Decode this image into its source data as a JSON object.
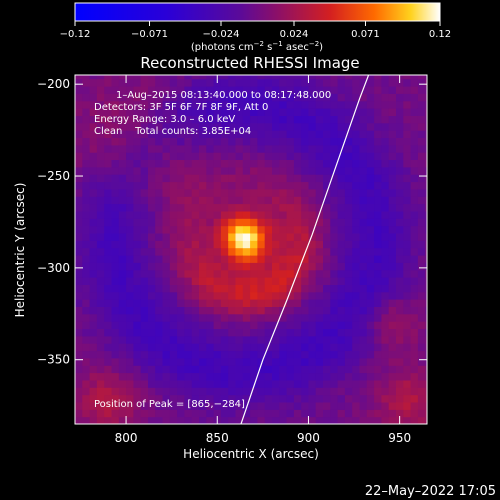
{
  "chart_data": {
    "type": "heatmap",
    "title": "Reconstructed RHESSI Image",
    "xlabel": "Heliocentric X (arcsec)",
    "ylabel": "Heliocentric Y (arcsec)",
    "xlim": [
      772,
      965
    ],
    "ylim": [
      -385,
      -195
    ],
    "x_ticks": [
      800,
      850,
      900,
      950
    ],
    "y_ticks": [
      -200,
      -250,
      -300,
      -350
    ],
    "x_tick_labels": [
      "800",
      "850",
      "900",
      "950"
    ],
    "y_tick_labels": [
      "−200",
      "−250",
      "−300",
      "−350"
    ],
    "colorbar": {
      "min": -0.12,
      "max": 0.12,
      "ticks": [
        -0.12,
        -0.071,
        -0.024,
        0.024,
        0.071,
        0.12
      ],
      "tick_labels": [
        "−0.12",
        "−0.071",
        "−0.024",
        "0.024",
        "0.071",
        "0.12"
      ],
      "units_html": "(photons cm<tspan baseline-shift='super' font-size='7'>−2</tspan> s<tspan baseline-shift='super' font-size='7'>−1</tspan> asec<tspan baseline-shift='super' font-size='7'>−2</tspan>)"
    },
    "peak": {
      "x": 865,
      "y": -284,
      "value": 0.12
    },
    "annotations": [
      "1–Aug–2015 08:13:40.000 to 08:17:48.000",
      "Detectors: 3F 5F 6F 7F 8F 9F, Att 0",
      "Energy Range: 3.0 – 6.0 keV",
      "Clean    Total counts: 3.85E+04"
    ],
    "peak_label": "Position of Peak = [865,−284]",
    "limb_curve": [
      [
        863,
        -385
      ],
      [
        875,
        -350
      ],
      [
        888,
        -318
      ],
      [
        902,
        -282
      ],
      [
        915,
        -245
      ],
      [
        928,
        -208
      ],
      [
        933,
        -195
      ]
    ],
    "grid": false,
    "legend": "none"
  },
  "footer_date": "22–May–2022 17:05",
  "colors": {
    "background": "#000000",
    "foreground": "#ffffff"
  }
}
